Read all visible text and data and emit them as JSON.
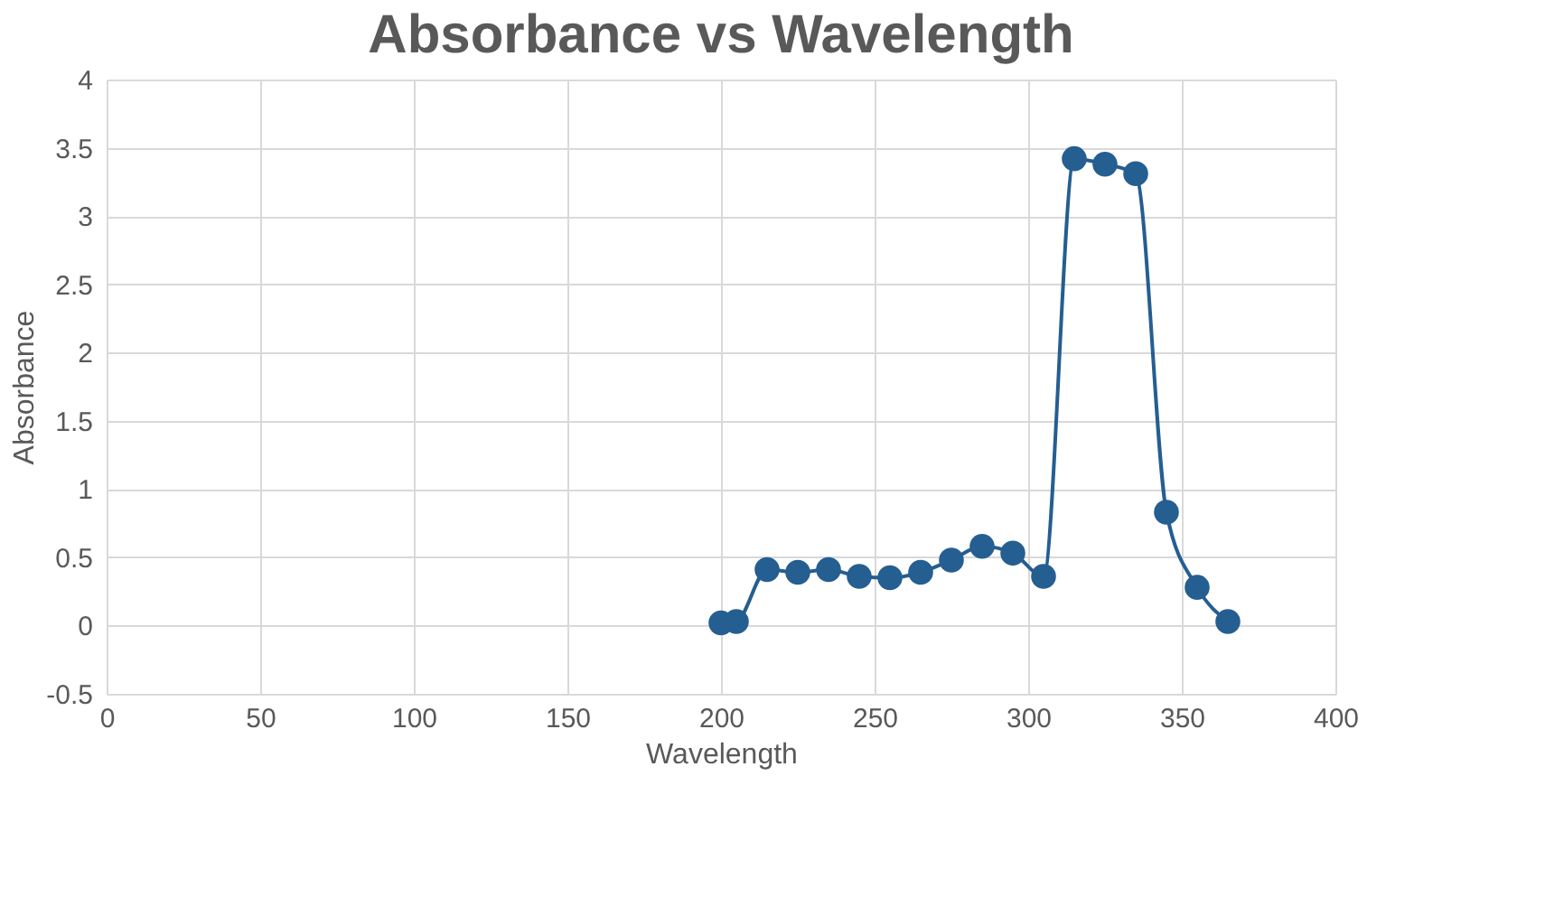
{
  "chart_data": {
    "type": "line",
    "title": "Absorbance vs Wavelength",
    "xlabel": "Wavelength",
    "ylabel": "Absorbance",
    "x": [
      200,
      205,
      215,
      225,
      235,
      245,
      255,
      265,
      275,
      285,
      295,
      305,
      315,
      325,
      335,
      345,
      355,
      365
    ],
    "series": [
      {
        "color": "#255e91",
        "values": [
          0.02,
          0.03,
          0.41,
          0.39,
          0.41,
          0.36,
          0.35,
          0.39,
          0.48,
          0.58,
          0.53,
          0.36,
          3.42,
          3.38,
          3.31,
          0.83,
          0.28,
          0.03
        ]
      }
    ],
    "xlim": [
      0,
      400
    ],
    "xticks": [
      0,
      50,
      100,
      150,
      200,
      250,
      300,
      350,
      400
    ],
    "ylim": [
      -0.5,
      4
    ],
    "yticks": [
      -0.5,
      0,
      0.5,
      1,
      1.5,
      2,
      2.5,
      3,
      3.5,
      4
    ],
    "grid": true,
    "marker": "circle",
    "line_style": "solid"
  }
}
